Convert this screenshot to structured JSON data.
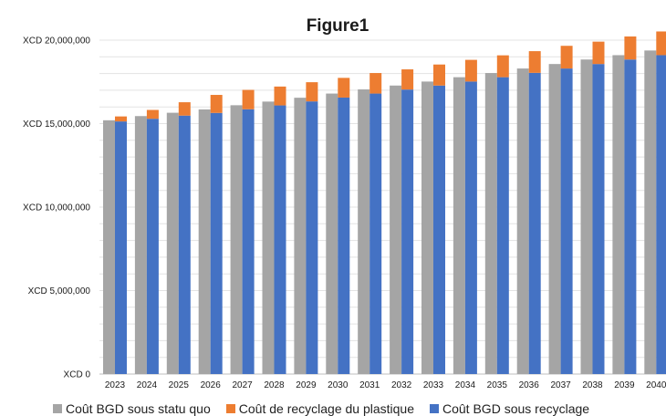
{
  "chart_data": {
    "type": "bar",
    "title": "Figure1",
    "xlabel": "",
    "ylabel": "",
    "ylim": [
      0,
      20000000
    ],
    "grid": true,
    "legend_position": "bottom",
    "yticks": [
      0,
      5000000,
      10000000,
      15000000,
      20000000
    ],
    "ytick_labels": [
      "XCD 0",
      "XCD 5,000,000",
      "XCD 10,000,000",
      "XCD 15,000,000",
      "XCD 20,000,000"
    ],
    "categories": [
      "2023",
      "2024",
      "2025",
      "2026",
      "2027",
      "2028",
      "2029",
      "2030",
      "2031",
      "2032",
      "2033",
      "2034",
      "2035",
      "2036",
      "2037",
      "2038",
      "2039",
      "2040"
    ],
    "series": [
      {
        "name": "Coût BGD sous statu quo",
        "color": "#a5a5a5",
        "stack": "a",
        "values": [
          15200000,
          15450000,
          15650000,
          15850000,
          16100000,
          16320000,
          16550000,
          16800000,
          17050000,
          17280000,
          17520000,
          17780000,
          18030000,
          18300000,
          18570000,
          18840000,
          19100000,
          19380000
        ]
      },
      {
        "name": "Coût BGD sous recyclage",
        "color": "#4472c4",
        "stack": "b",
        "values": [
          15130000,
          15290000,
          15480000,
          15640000,
          15860000,
          16090000,
          16330000,
          16560000,
          16800000,
          17040000,
          17280000,
          17520000,
          17780000,
          18040000,
          18300000,
          18570000,
          18840000,
          19100000
        ]
      },
      {
        "name": "Coût de recyclage du plastique",
        "color": "#ed7d31",
        "stack": "b",
        "values": [
          300000,
          530000,
          800000,
          1080000,
          1160000,
          1130000,
          1150000,
          1180000,
          1230000,
          1210000,
          1260000,
          1300000,
          1310000,
          1300000,
          1360000,
          1340000,
          1380000,
          1420000
        ]
      }
    ],
    "legend": [
      {
        "name": "Coût BGD sous statu quo",
        "color": "#a5a5a5"
      },
      {
        "name": "Coût de recyclage du plastique",
        "color": "#ed7d31"
      },
      {
        "name": "Coût BGD sous recyclage",
        "color": "#4472c4"
      }
    ]
  }
}
